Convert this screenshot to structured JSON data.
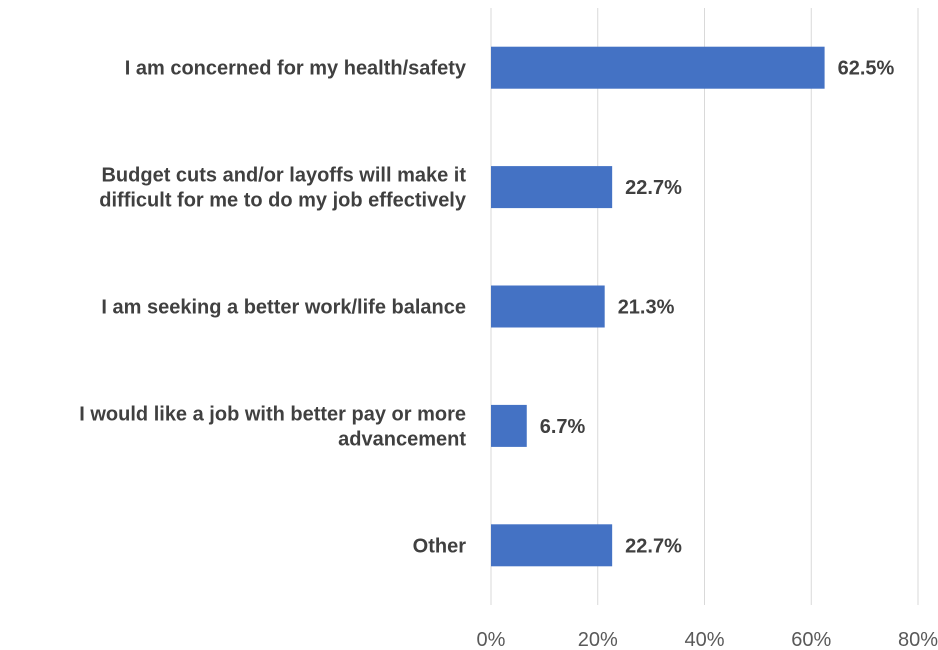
{
  "chart_data": {
    "type": "bar",
    "orientation": "horizontal",
    "categories": [
      [
        "I am concerned for my health/safety"
      ],
      [
        "Budget cuts and/or layoffs will make it",
        "difficult for me to do my job effectively"
      ],
      [
        "I am seeking a better work/life balance"
      ],
      [
        "I would like a job with better pay or more",
        "advancement"
      ],
      [
        "Other"
      ]
    ],
    "values": [
      62.5,
      22.7,
      21.3,
      6.7,
      22.7
    ],
    "value_labels": [
      "62.5%",
      "22.7%",
      "21.3%",
      "6.7%",
      "22.7%"
    ],
    "xlim": [
      0,
      80
    ],
    "x_ticks": [
      0,
      20,
      40,
      60,
      80
    ],
    "x_tick_labels": [
      "0%",
      "20%",
      "40%",
      "60%",
      "80%"
    ],
    "grid": true,
    "bar_color": "#4472c4",
    "title": "",
    "xlabel": "",
    "ylabel": ""
  }
}
